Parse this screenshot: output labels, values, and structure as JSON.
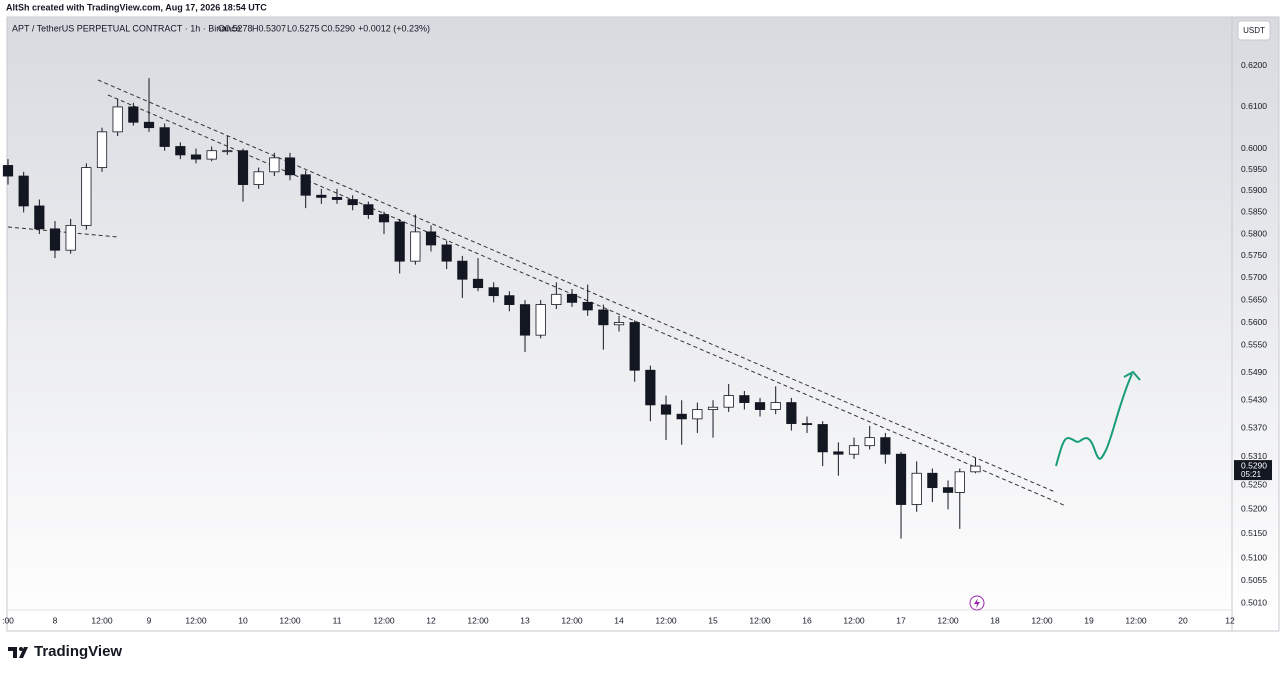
{
  "credit": "AltSh created with TradingView.com, Aug 17, 2026 18:54 UTC",
  "symbol": "APT / TetherUS PERPETUAL CONTRACT · 1h · Binance",
  "legend": {
    "open": "O0.5278",
    "high": "H0.5307",
    "low": "L0.5275",
    "close": "C0.5290",
    "change": "+0.0012 (+0.23%)"
  },
  "currency_button": "USDT",
  "last_price_label": "0.5290",
  "countdown": "05:21",
  "brand": "TradingView",
  "chart_data": {
    "type": "candlestick",
    "log_scale": true,
    "grid": false,
    "up_color": "#ffffff",
    "down_color": "#131722",
    "xlim": [
      12,
      324.5
    ],
    "ylim": [
      0.4957,
      0.6314
    ],
    "xticks": [
      {
        "value": 12,
        "label": ":00"
      },
      {
        "value": 24,
        "label": "8"
      },
      {
        "value": 36,
        "label": "12:00"
      },
      {
        "value": 48,
        "label": "9"
      },
      {
        "value": 60,
        "label": "12:00"
      },
      {
        "value": 72,
        "label": "10"
      },
      {
        "value": 84,
        "label": "12:00"
      },
      {
        "value": 96,
        "label": "11"
      },
      {
        "value": 108,
        "label": "12:00"
      },
      {
        "value": 120,
        "label": "12"
      },
      {
        "value": 132,
        "label": "12:00"
      },
      {
        "value": 144,
        "label": "13"
      },
      {
        "value": 156,
        "label": "12:00"
      },
      {
        "value": 168,
        "label": "14"
      },
      {
        "value": 180,
        "label": "12:00"
      },
      {
        "value": 192,
        "label": "15"
      },
      {
        "value": 204,
        "label": "12:00"
      },
      {
        "value": 216,
        "label": "16"
      },
      {
        "value": 228,
        "label": "12:00"
      },
      {
        "value": 240,
        "label": "17"
      },
      {
        "value": 252,
        "label": "12:00"
      },
      {
        "value": 264,
        "label": "18"
      },
      {
        "value": 276,
        "label": "12:00"
      },
      {
        "value": 288,
        "label": "19"
      },
      {
        "value": 300,
        "label": "12:00"
      },
      {
        "value": 312,
        "label": "20"
      },
      {
        "value": 324,
        "label": "12"
      }
    ],
    "yticks": [
      {
        "value": 0.62,
        "label": "0.6200"
      },
      {
        "value": 0.61,
        "label": "0.6100"
      },
      {
        "value": 0.6,
        "label": "0.6000"
      },
      {
        "value": 0.595,
        "label": "0.5950"
      },
      {
        "value": 0.59,
        "label": "0.5900"
      },
      {
        "value": 0.585,
        "label": "0.5850"
      },
      {
        "value": 0.58,
        "label": "0.5800"
      },
      {
        "value": 0.575,
        "label": "0.5750"
      },
      {
        "value": 0.57,
        "label": "0.5700"
      },
      {
        "value": 0.565,
        "label": "0.5650"
      },
      {
        "value": 0.56,
        "label": "0.5600"
      },
      {
        "value": 0.555,
        "label": "0.5550"
      },
      {
        "value": 0.549,
        "label": "0.5490"
      },
      {
        "value": 0.543,
        "label": "0.5430"
      },
      {
        "value": 0.537,
        "label": "0.5370"
      },
      {
        "value": 0.531,
        "label": "0.5310"
      },
      {
        "value": 0.525,
        "label": "0.5250"
      },
      {
        "value": 0.52,
        "label": "0.5200"
      },
      {
        "value": 0.515,
        "label": "0.5150"
      },
      {
        "value": 0.51,
        "label": "0.5100"
      },
      {
        "value": 0.5055,
        "label": "0.5055"
      },
      {
        "value": 0.501,
        "label": "0.5010"
      }
    ],
    "x": [
      12,
      16,
      20,
      24,
      28,
      32,
      36,
      40,
      44,
      48,
      52,
      56,
      60,
      64,
      68,
      72,
      76,
      80,
      84,
      88,
      92,
      96,
      100,
      104,
      108,
      112,
      116,
      120,
      124,
      128,
      132,
      136,
      140,
      144,
      148,
      152,
      156,
      160,
      164,
      168,
      172,
      176,
      180,
      184,
      188,
      192,
      196,
      200,
      204,
      208,
      212,
      216,
      220,
      224,
      228,
      232,
      236,
      240,
      244,
      248,
      252,
      255,
      259
    ],
    "open": [
      0.596,
      0.5935,
      0.5865,
      0.5812,
      0.5763,
      0.582,
      0.5955,
      0.604,
      0.61,
      0.6063,
      0.605,
      0.6005,
      0.5985,
      0.5975,
      0.5995,
      0.5995,
      0.5915,
      0.5945,
      0.5978,
      0.5938,
      0.589,
      0.5885,
      0.588,
      0.5868,
      0.5845,
      0.5828,
      0.5738,
      0.5805,
      0.5775,
      0.5738,
      0.5697,
      0.5678,
      0.566,
      0.564,
      0.5572,
      0.564,
      0.5663,
      0.5645,
      0.5628,
      0.5595,
      0.56,
      0.5495,
      0.542,
      0.54,
      0.539,
      0.541,
      0.5415,
      0.544,
      0.5425,
      0.541,
      0.5425,
      0.538,
      0.5378,
      0.532,
      0.5315,
      0.5333,
      0.535,
      0.5315,
      0.521,
      0.5275,
      0.5245,
      0.5235,
      0.5278
    ],
    "high": [
      0.5975,
      0.5945,
      0.588,
      0.583,
      0.5835,
      0.5965,
      0.605,
      0.612,
      0.611,
      0.617,
      0.606,
      0.6015,
      0.6,
      0.6005,
      0.603,
      0.6,
      0.5955,
      0.599,
      0.599,
      0.5948,
      0.5905,
      0.5905,
      0.589,
      0.5875,
      0.5852,
      0.5835,
      0.5845,
      0.582,
      0.5785,
      0.575,
      0.5745,
      0.569,
      0.567,
      0.565,
      0.565,
      0.569,
      0.5675,
      0.5685,
      0.564,
      0.5615,
      0.5605,
      0.5505,
      0.544,
      0.543,
      0.5425,
      0.543,
      0.5465,
      0.545,
      0.5435,
      0.546,
      0.5435,
      0.5395,
      0.5385,
      0.534,
      0.535,
      0.5375,
      0.536,
      0.532,
      0.53,
      0.5285,
      0.526,
      0.5285,
      0.5307
    ],
    "low": [
      0.5915,
      0.585,
      0.58,
      0.5745,
      0.5755,
      0.581,
      0.5945,
      0.603,
      0.6055,
      0.604,
      0.5995,
      0.5975,
      0.5965,
      0.597,
      0.5985,
      0.5875,
      0.5905,
      0.5935,
      0.5925,
      0.586,
      0.587,
      0.587,
      0.5855,
      0.5835,
      0.58,
      0.571,
      0.573,
      0.576,
      0.572,
      0.5655,
      0.567,
      0.5645,
      0.5625,
      0.5535,
      0.5565,
      0.563,
      0.5635,
      0.5615,
      0.554,
      0.558,
      0.547,
      0.5385,
      0.5345,
      0.5335,
      0.536,
      0.535,
      0.5405,
      0.541,
      0.5395,
      0.54,
      0.5365,
      0.536,
      0.529,
      0.527,
      0.5305,
      0.5325,
      0.5295,
      0.514,
      0.5195,
      0.5215,
      0.52,
      0.516,
      0.5275
    ],
    "close": [
      0.5935,
      0.5865,
      0.5812,
      0.5763,
      0.582,
      0.5955,
      0.604,
      0.61,
      0.6063,
      0.605,
      0.6005,
      0.5985,
      0.5975,
      0.5995,
      0.5995,
      0.5915,
      0.5945,
      0.5978,
      0.5938,
      0.589,
      0.5885,
      0.588,
      0.5868,
      0.5845,
      0.5828,
      0.5738,
      0.5805,
      0.5775,
      0.5738,
      0.5697,
      0.5678,
      0.566,
      0.564,
      0.5572,
      0.564,
      0.5663,
      0.5645,
      0.5628,
      0.5595,
      0.56,
      0.5495,
      0.542,
      0.54,
      0.539,
      0.541,
      0.5415,
      0.544,
      0.5425,
      0.541,
      0.5425,
      0.538,
      0.5378,
      0.532,
      0.5315,
      0.5333,
      0.535,
      0.5315,
      0.521,
      0.5275,
      0.5245,
      0.5235,
      0.5278,
      0.529
    ]
  }
}
